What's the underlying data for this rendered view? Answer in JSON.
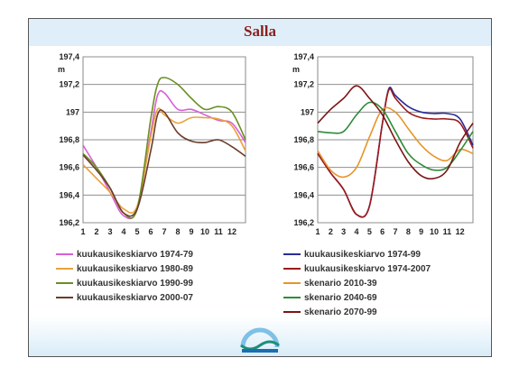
{
  "title": "Salla",
  "chart_data": [
    {
      "type": "line",
      "ylabel": "m",
      "ylim": [
        196.2,
        197.4
      ],
      "yticks": [
        "197,4",
        "197,2",
        "197",
        "196,8",
        "196,6",
        "196,4",
        "196,2"
      ],
      "xticks": [
        "1",
        "2",
        "3",
        "4",
        "5",
        "6",
        "7",
        "8",
        "9",
        "10",
        "11",
        "12"
      ],
      "xrange": [
        1,
        13
      ],
      "grid": true,
      "legend_position": "bottom",
      "series": [
        {
          "name": "kuukausikeskiarvo 1974-79",
          "color": "#d75fd7",
          "x": [
            1,
            2,
            3,
            4,
            5,
            6,
            6.5,
            7,
            8,
            9,
            10,
            11,
            12,
            13
          ],
          "y": [
            196.76,
            196.6,
            196.42,
            196.25,
            196.3,
            196.85,
            197.12,
            197.14,
            197.02,
            197.02,
            196.98,
            196.94,
            196.92,
            196.78
          ]
        },
        {
          "name": "kuukausikeskiarvo 1980-89",
          "color": "#e9a13b",
          "x": [
            1,
            2,
            3,
            4,
            5,
            6,
            6.5,
            7,
            8,
            9,
            10,
            11,
            12,
            13
          ],
          "y": [
            196.62,
            196.52,
            196.42,
            196.3,
            196.32,
            196.82,
            197.02,
            196.98,
            196.92,
            196.96,
            196.96,
            196.95,
            196.9,
            196.72
          ]
        },
        {
          "name": "kuukausikeskiarvo 1990-99",
          "color": "#6b8e23",
          "x": [
            1,
            2,
            3,
            4,
            5,
            6,
            6.5,
            7,
            8,
            9,
            10,
            11,
            12,
            13
          ],
          "y": [
            196.7,
            196.6,
            196.45,
            196.27,
            196.3,
            196.95,
            197.2,
            197.25,
            197.2,
            197.1,
            197.02,
            197.04,
            197.0,
            196.8
          ]
        },
        {
          "name": "kuukausikeskiarvo 2000-07",
          "color": "#6b3c2a",
          "x": [
            1,
            2,
            3,
            4,
            5,
            6,
            6.5,
            7,
            8,
            9,
            10,
            11,
            12,
            13
          ],
          "y": [
            196.69,
            196.58,
            196.45,
            196.27,
            196.3,
            196.72,
            196.98,
            197.0,
            196.85,
            196.79,
            196.78,
            196.8,
            196.75,
            196.68
          ]
        }
      ]
    },
    {
      "type": "line",
      "ylabel": "m",
      "ylim": [
        196.2,
        197.4
      ],
      "yticks": [
        "197,4",
        "197,2",
        "197",
        "196,8",
        "196,6",
        "196,4",
        "196,2"
      ],
      "xticks": [
        "1",
        "2",
        "3",
        "4",
        "5",
        "6",
        "7",
        "8",
        "9",
        "10",
        "11",
        "12"
      ],
      "xrange": [
        1,
        13
      ],
      "grid": true,
      "legend_position": "bottom",
      "series": [
        {
          "name": "kuukausikeskiarvo 1974-99",
          "color": "#2b2b9a",
          "x": [
            1,
            2,
            3,
            4,
            5,
            6,
            6.5,
            7,
            8,
            9,
            10,
            11,
            12,
            13
          ],
          "y": [
            196.7,
            196.56,
            196.44,
            196.26,
            196.32,
            196.92,
            197.17,
            197.12,
            197.04,
            197.0,
            196.99,
            196.99,
            196.95,
            196.76
          ]
        },
        {
          "name": "kuukausikeskiarvo 1974-2007",
          "color": "#9c1a1a",
          "x": [
            1,
            2,
            3,
            4,
            5,
            6,
            6.5,
            7,
            8,
            9,
            10,
            11,
            12,
            13
          ],
          "y": [
            196.7,
            196.56,
            196.44,
            196.26,
            196.32,
            196.92,
            197.16,
            197.1,
            197.0,
            196.96,
            196.95,
            196.95,
            196.92,
            196.74
          ]
        },
        {
          "name": "skenario 2010-39",
          "color": "#e6952d",
          "x": [
            1,
            2,
            3,
            4,
            5,
            6,
            7,
            8,
            9,
            10,
            11,
            12,
            13
          ],
          "y": [
            196.72,
            196.58,
            196.53,
            196.6,
            196.82,
            197.02,
            197.0,
            196.88,
            196.76,
            196.68,
            196.65,
            196.73,
            196.7
          ]
        },
        {
          "name": "skenario 2040-69",
          "color": "#2e8b3a",
          "x": [
            1,
            2,
            3,
            4,
            5,
            6,
            7,
            8,
            9,
            10,
            11,
            12,
            13
          ],
          "y": [
            196.86,
            196.85,
            196.86,
            196.98,
            197.07,
            197.02,
            196.86,
            196.7,
            196.62,
            196.58,
            196.6,
            196.72,
            196.86
          ]
        },
        {
          "name": "skenario 2070-99",
          "color": "#7a1515",
          "x": [
            1,
            2,
            3,
            4,
            5,
            6,
            7,
            8,
            9,
            10,
            11,
            12,
            13
          ],
          "y": [
            196.92,
            197.02,
            197.1,
            197.19,
            197.1,
            196.98,
            196.8,
            196.64,
            196.54,
            196.52,
            196.58,
            196.78,
            196.92
          ]
        }
      ]
    }
  ]
}
